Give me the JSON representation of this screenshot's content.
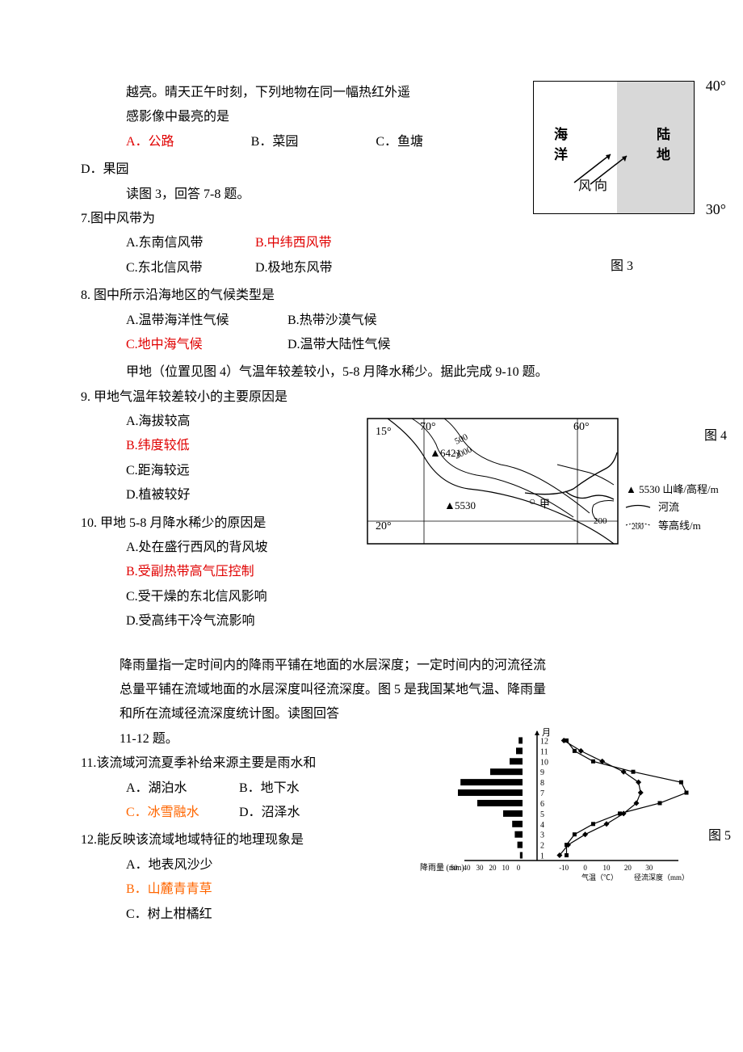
{
  "intro1": {
    "line1": "越亮。晴天正午时刻，下列地物在同一幅热红外遥",
    "line2": "感影像中最亮的是"
  },
  "q6": {
    "optA": "A．公路",
    "optB": "B．菜园",
    "optC": "C．鱼塘",
    "optD": "D．果园"
  },
  "intro2": "读图 3，回答 7-8 题。",
  "q7": {
    "stem": "7.图中风带为",
    "optA": "A.东南信风带",
    "optB": "B.中纬西风带",
    "optC": "C.东北信风带",
    "optD": "D.极地东风带"
  },
  "q8": {
    "stem": "8. 图中所示沿海地区的气候类型是",
    "optA": "A.温带海洋性气候",
    "optB": "B.热带沙漠气候",
    "optC": "C.地中海气候",
    "optD": "D.温带大陆性气候"
  },
  "intro3": "甲地（位置见图 4）气温年较差较小，5-8 月降水稀少。据此完成 9-10 题。",
  "q9": {
    "stem": "9. 甲地气温年较差较小的主要原因是",
    "optA": "A.海拔较高",
    "optB": "B.纬度较低",
    "optC": "C.距海较远",
    "optD": "D.植被较好"
  },
  "q10": {
    "stem": "10. 甲地 5-8 月降水稀少的原因是",
    "optA": "A.处在盛行西风的背风坡",
    "optB": "B.受副热带高气压控制",
    "optC": "C.受干燥的东北信风影响",
    "optD": "D.受高纬干冷气流影响"
  },
  "intro4": {
    "line1": "降雨量指一定时间内的降雨平铺在地面的水层深度；一定时间内的河流径流",
    "line2": "总量平铺在流域地面的水层深度叫径流深度。图 5 是我国某地气温、降雨量",
    "line3": "和所在流域径流深度统计图。读图回答",
    "line4": "11-12 题。"
  },
  "q11": {
    "stem": "11.该流域河流夏季补给来源主要是雨水和",
    "optA": "A．湖泊水",
    "optB": "B．地下水",
    "optC": "C．冰雪融水",
    "optD": "D．沼泽水"
  },
  "q12": {
    "stem": "12.能反映该流域地域特征的地理现象是",
    "optA": "A．地表风沙少",
    "optB": "B．山麓青青草",
    "optC": "C．树上柑橘红"
  },
  "fig3": {
    "sea": "海",
    "sea2": "洋",
    "land": "陆",
    "land2": "地",
    "wind": "风向",
    "lat40": "40°",
    "lat30": "30°",
    "label": "图 3"
  },
  "fig4": {
    "label": "图 4",
    "lon70": "70°",
    "lon60": "60°",
    "lat15": "15°",
    "lat20": "20°",
    "contour500": "500",
    "contour2000": "2000",
    "contour200": "200",
    "peak1": "6421",
    "peak2": "5530",
    "jia": "甲",
    "legend_peak": "▲ 5530   山峰/高程/m",
    "legend_river": "河流",
    "legend_contour": "等高线/m",
    "legend_contour_num": "200"
  },
  "fig5": {
    "label": "图 5",
    "yaxis_label": "月",
    "xaxis_rain": "降雨量（mm）",
    "xaxis_temp": "气温（℃）",
    "xaxis_runoff": "径流深度（mm）",
    "rain_ticks": [
      "50",
      "40",
      "30",
      "20",
      "10",
      "0"
    ],
    "temp_ticks": [
      "-10",
      "0",
      "10",
      "20",
      "30"
    ],
    "runoff_ticks": [
      "10",
      "20",
      "30",
      "40",
      "50"
    ],
    "months": [
      "1",
      "2",
      "3",
      "4",
      "5",
      "6",
      "7",
      "8",
      "9",
      "10",
      "11",
      "12"
    ],
    "rainfall_bars": [
      2,
      4,
      6,
      8,
      15,
      35,
      50,
      48,
      25,
      10,
      5,
      3
    ],
    "temp_points": [
      -12,
      -8,
      0,
      10,
      18,
      24,
      26,
      25,
      18,
      8,
      -2,
      -10
    ],
    "runoff_points": [
      5,
      5,
      8,
      15,
      25,
      40,
      50,
      48,
      30,
      15,
      8,
      5
    ],
    "colors": {
      "bar": "#000000",
      "temp_line": "#000000",
      "runoff_line": "#000000",
      "axis": "#000000"
    }
  }
}
